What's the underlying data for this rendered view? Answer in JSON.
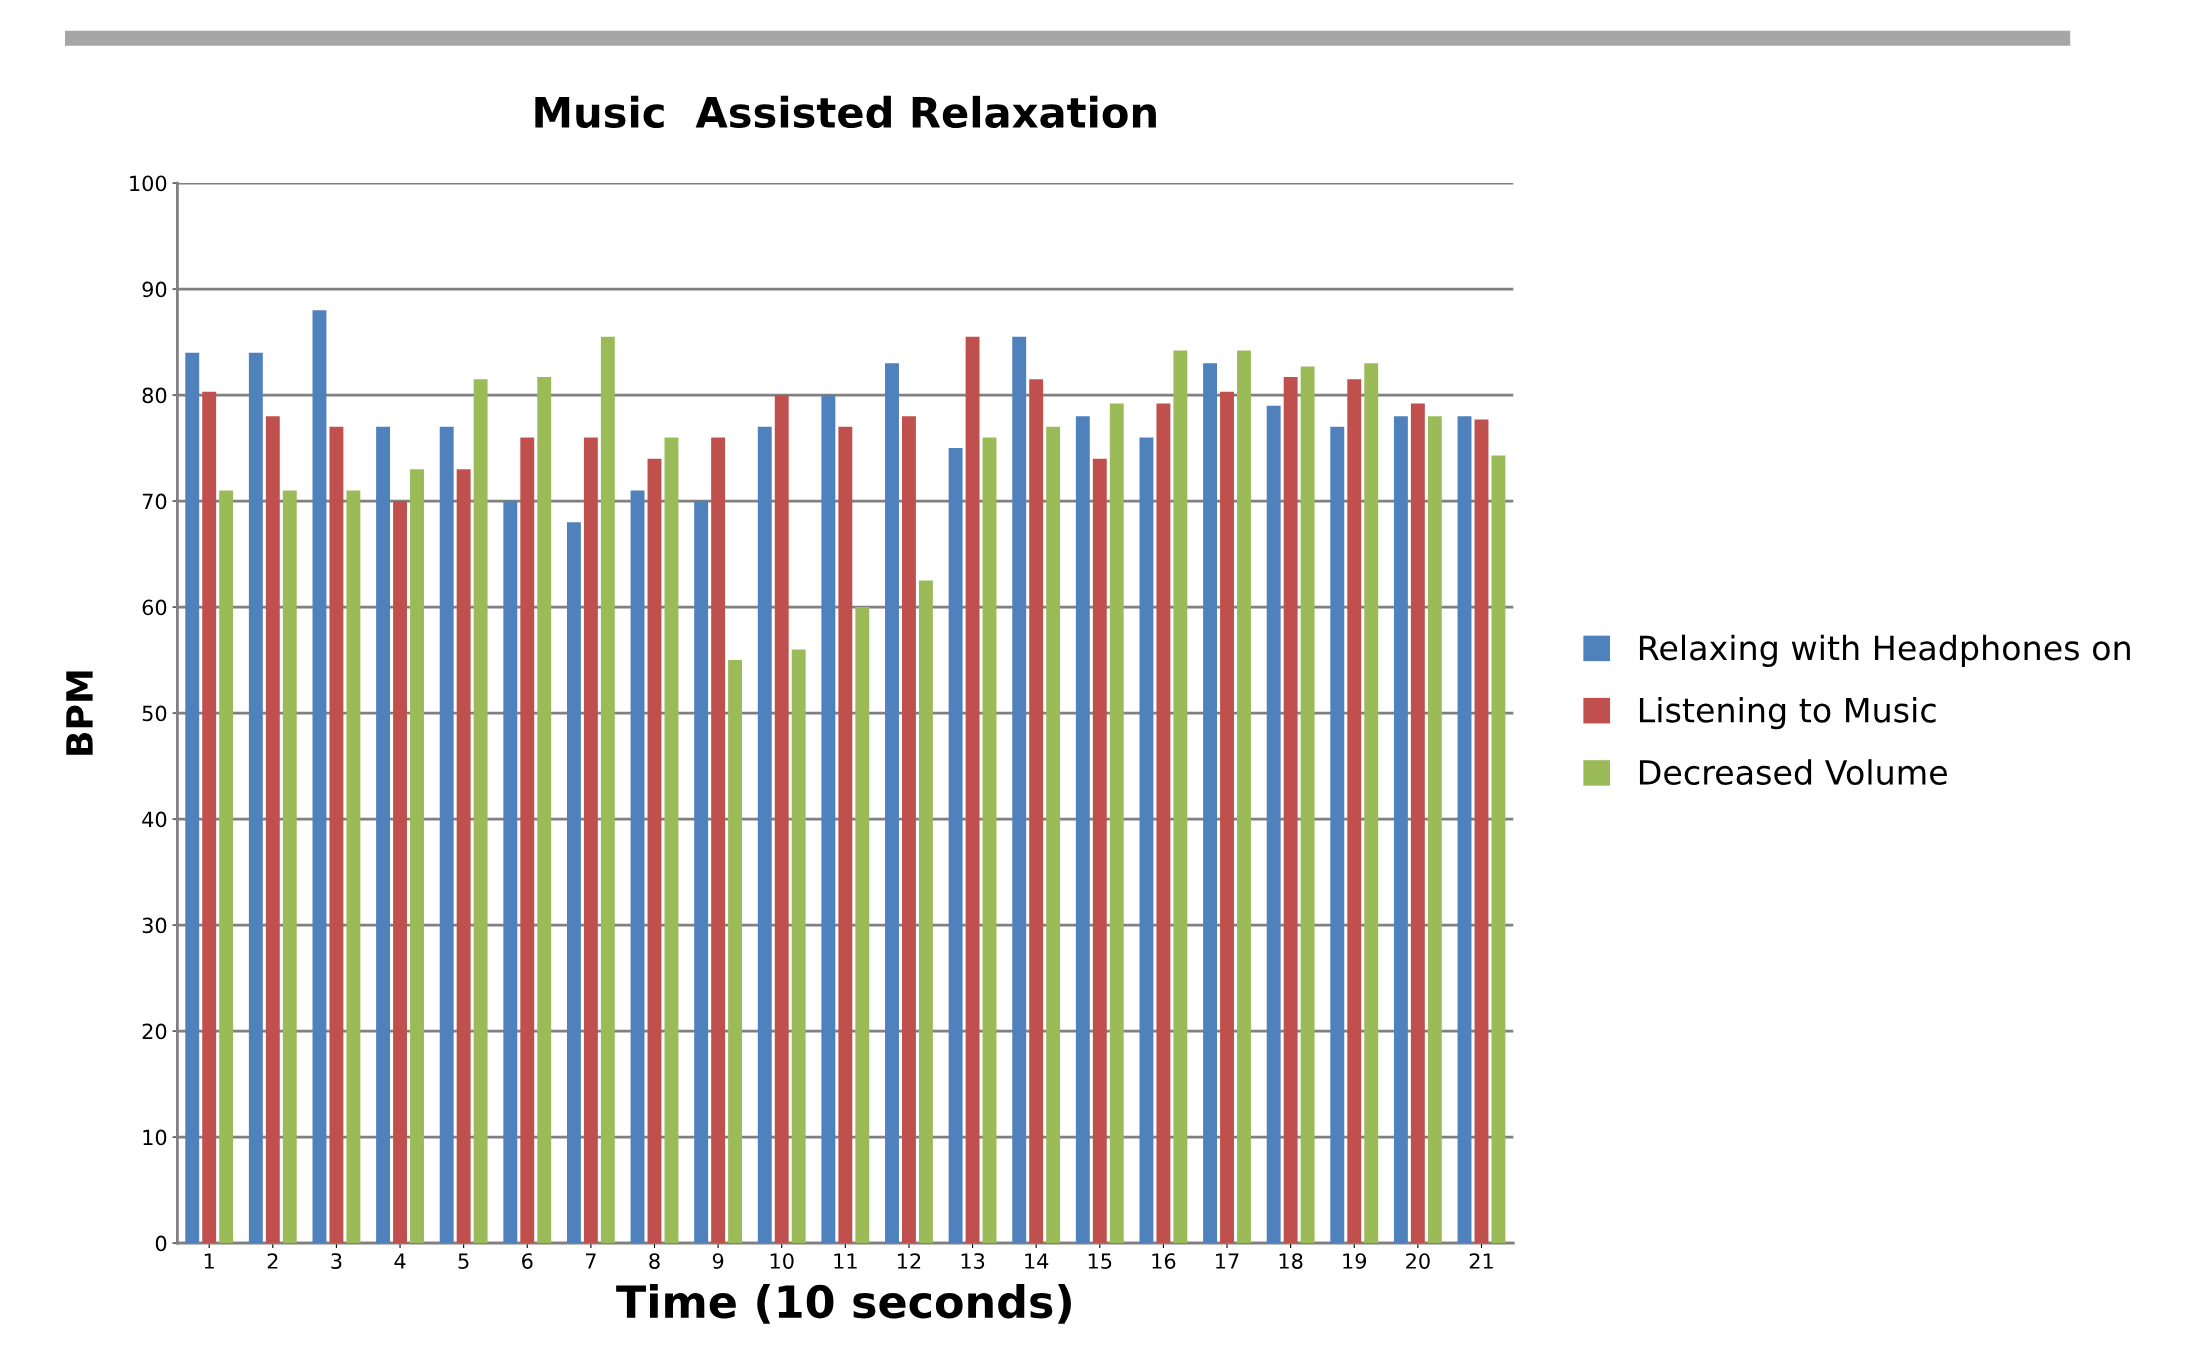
{
  "chart_data": {
    "type": "bar",
    "title": "Music  Assisted Relaxation",
    "xlabel": "Time (10 seconds)",
    "ylabel": "BPM",
    "categories": [
      "1",
      "2",
      "3",
      "4",
      "5",
      "6",
      "7",
      "8",
      "9",
      "10",
      "11",
      "12",
      "13",
      "14",
      "15",
      "16",
      "17",
      "18",
      "19",
      "20",
      "21"
    ],
    "series": [
      {
        "name": "Relaxing with Headphones on",
        "color": "#4f81bd",
        "values": [
          84,
          84,
          88,
          77,
          77,
          70,
          68,
          71,
          70,
          77,
          80,
          83,
          75,
          85.5,
          78,
          76,
          83,
          79,
          77,
          78,
          78
        ]
      },
      {
        "name": "Listening to Music",
        "color": "#c0504d",
        "values": [
          80.3,
          78,
          77,
          70,
          73,
          76,
          76,
          74,
          76,
          80,
          77,
          78,
          85.5,
          81.5,
          74,
          79.2,
          80.3,
          81.7,
          81.5,
          79.2,
          77.7
        ]
      },
      {
        "name": "Decreased Volume",
        "color": "#9bbb59",
        "values": [
          71,
          71,
          71,
          73,
          81.5,
          81.7,
          85.5,
          76,
          55,
          56,
          60,
          62.5,
          76,
          77,
          79.2,
          84.2,
          84.2,
          82.7,
          83,
          78,
          74.3
        ]
      }
    ],
    "ylim": [
      0,
      100
    ],
    "yticks": [
      0,
      10,
      20,
      30,
      40,
      50,
      60,
      70,
      80,
      90,
      100
    ],
    "grid": "y",
    "legend": "right"
  }
}
